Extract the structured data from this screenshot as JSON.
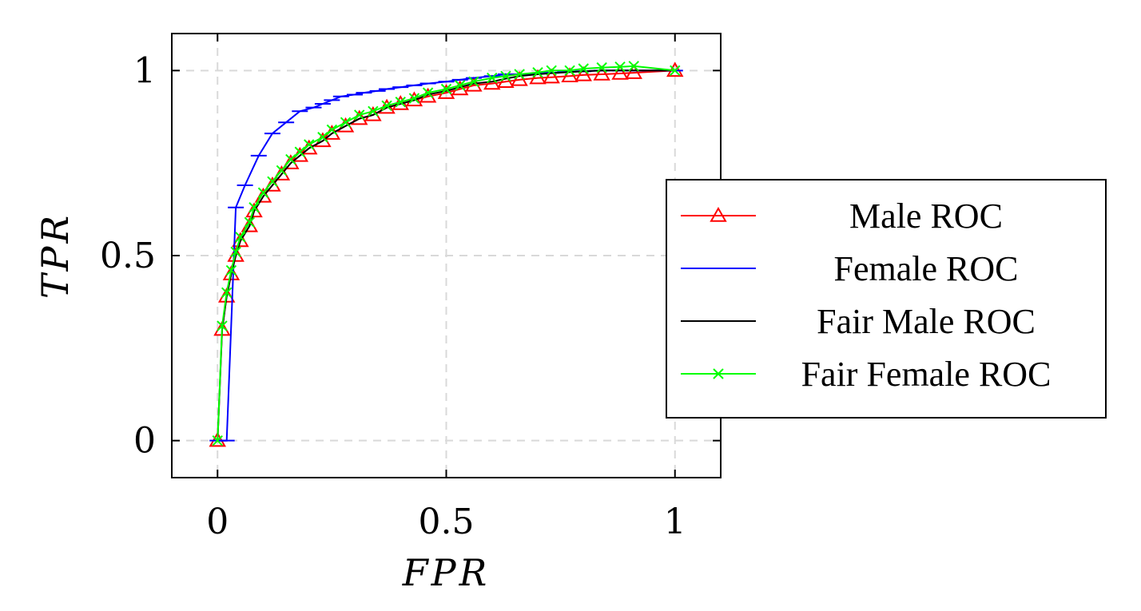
{
  "chart_data": {
    "type": "line",
    "title": "",
    "xlabel": "FPR",
    "ylabel": "TPR",
    "xlim": [
      -0.1,
      1.1
    ],
    "ylim": [
      -0.1,
      1.1
    ],
    "xticks": [
      0,
      0.5,
      1
    ],
    "yticks": [
      0,
      0.5,
      1
    ],
    "xtick_labels": [
      "0",
      "0.5",
      "1"
    ],
    "ytick_labels": [
      "0",
      "0.5",
      "1"
    ],
    "grid": true,
    "legend_position": "right",
    "series": [
      {
        "name": "Male ROC",
        "color": "#ff0000",
        "marker": "triangle",
        "x": [
          0,
          0.01,
          0.02,
          0.03,
          0.04,
          0.05,
          0.07,
          0.08,
          0.1,
          0.12,
          0.14,
          0.16,
          0.18,
          0.2,
          0.23,
          0.25,
          0.28,
          0.31,
          0.34,
          0.37,
          0.4,
          0.43,
          0.46,
          0.5,
          0.53,
          0.56,
          0.6,
          0.63,
          0.66,
          0.7,
          0.73,
          0.77,
          0.8,
          0.84,
          0.88,
          0.91,
          1
        ],
        "y": [
          0,
          0.3,
          0.39,
          0.45,
          0.5,
          0.54,
          0.58,
          0.62,
          0.66,
          0.69,
          0.72,
          0.75,
          0.77,
          0.79,
          0.81,
          0.83,
          0.85,
          0.87,
          0.88,
          0.9,
          0.91,
          0.92,
          0.93,
          0.94,
          0.95,
          0.96,
          0.965,
          0.97,
          0.975,
          0.98,
          0.982,
          0.985,
          0.988,
          0.99,
          0.992,
          0.994,
          1
        ]
      },
      {
        "name": "Female ROC",
        "color": "#0000ff",
        "marker": "hbar",
        "x": [
          0,
          0.02,
          0.04,
          0.06,
          0.09,
          0.12,
          0.15,
          0.18,
          0.21,
          0.23,
          0.25,
          0.27,
          0.3,
          0.32,
          0.35,
          0.37,
          0.4,
          0.43,
          0.46,
          0.5,
          0.53,
          0.56,
          0.6,
          0.63,
          0.67,
          0.7,
          0.73,
          0.76,
          0.8,
          0.84,
          0.88,
          0.92,
          1
        ],
        "y": [
          0,
          0,
          0.63,
          0.69,
          0.77,
          0.83,
          0.86,
          0.89,
          0.9,
          0.91,
          0.92,
          0.93,
          0.935,
          0.94,
          0.945,
          0.95,
          0.955,
          0.96,
          0.965,
          0.97,
          0.975,
          0.98,
          0.985,
          0.99,
          0.99,
          0.992,
          0.994,
          0.996,
          0.998,
          1,
          1,
          1,
          1
        ]
      },
      {
        "name": "Fair Male ROC",
        "color": "#000000",
        "marker": "none",
        "x": [
          0,
          0.01,
          0.02,
          0.03,
          0.04,
          0.05,
          0.07,
          0.08,
          0.1,
          0.12,
          0.14,
          0.16,
          0.18,
          0.2,
          0.23,
          0.25,
          0.28,
          0.31,
          0.34,
          0.37,
          0.4,
          0.43,
          0.46,
          0.5,
          0.53,
          0.56,
          0.6,
          0.63,
          0.66,
          0.7,
          0.73,
          0.77,
          0.8,
          0.84,
          0.88,
          0.91,
          1
        ],
        "y": [
          0,
          0.3,
          0.39,
          0.45,
          0.5,
          0.54,
          0.58,
          0.62,
          0.66,
          0.69,
          0.72,
          0.75,
          0.77,
          0.79,
          0.81,
          0.83,
          0.85,
          0.87,
          0.88,
          0.9,
          0.91,
          0.92,
          0.935,
          0.945,
          0.955,
          0.965,
          0.97,
          0.978,
          0.985,
          0.99,
          0.993,
          0.996,
          0.998,
          1,
          1,
          1,
          1
        ]
      },
      {
        "name": "Fair Female ROC",
        "color": "#00ff00",
        "marker": "cross",
        "x": [
          0,
          0.01,
          0.02,
          0.03,
          0.04,
          0.05,
          0.07,
          0.08,
          0.1,
          0.12,
          0.14,
          0.16,
          0.18,
          0.2,
          0.23,
          0.25,
          0.28,
          0.31,
          0.34,
          0.37,
          0.4,
          0.43,
          0.46,
          0.5,
          0.53,
          0.56,
          0.6,
          0.63,
          0.66,
          0.7,
          0.73,
          0.77,
          0.8,
          0.84,
          0.88,
          0.91,
          1
        ],
        "y": [
          0,
          0.31,
          0.4,
          0.46,
          0.51,
          0.55,
          0.59,
          0.63,
          0.67,
          0.7,
          0.73,
          0.76,
          0.78,
          0.8,
          0.82,
          0.84,
          0.86,
          0.88,
          0.89,
          0.905,
          0.915,
          0.925,
          0.94,
          0.95,
          0.96,
          0.97,
          0.98,
          0.985,
          0.99,
          0.995,
          1,
          1,
          1.005,
          1.008,
          1.01,
          1.012,
          1
        ]
      }
    ]
  }
}
